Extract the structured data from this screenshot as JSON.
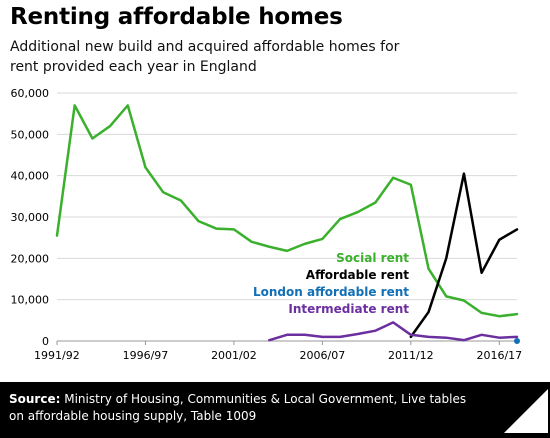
{
  "header": {
    "title": "Renting affordable homes",
    "subtitle": "Additional new build and acquired affordable homes for rent provided each year in England"
  },
  "footer": {
    "source_label": "Source:",
    "source_text": "Ministry of Housing, Communities & Local Government, Live tables on affordable housing supply, Table 1009",
    "logo_text": "Full Fact"
  },
  "chart_data": {
    "type": "line",
    "title": "Renting affordable homes",
    "subtitle": "Additional new build and acquired affordable homes for rent provided each year in England",
    "x": [
      "1991/92",
      "1992/93",
      "1993/94",
      "1994/95",
      "1995/96",
      "1996/97",
      "1997/98",
      "1998/99",
      "1999/00",
      "2000/01",
      "2001/02",
      "2002/03",
      "2003/04",
      "2004/05",
      "2005/06",
      "2006/07",
      "2007/08",
      "2008/09",
      "2009/10",
      "2010/11",
      "2011/12",
      "2012/13",
      "2013/14",
      "2014/15",
      "2015/16",
      "2016/17",
      "2017/18"
    ],
    "x_tick_labels": [
      "1991/92",
      "1996/97",
      "2001/02",
      "2006/07",
      "2011/12",
      "2016/17"
    ],
    "ylim": [
      0,
      60000
    ],
    "y_ticks": [
      0,
      10000,
      20000,
      30000,
      40000,
      50000,
      60000
    ],
    "y_tick_labels": [
      "0",
      "10,000",
      "20,000",
      "30,000",
      "40,000",
      "50,000",
      "60,000"
    ],
    "grid": "horizontal",
    "legend": "inline-right",
    "series": [
      {
        "name": "Social rent",
        "color": "#3ab02c",
        "values": [
          25500,
          57000,
          49000,
          52000,
          57000,
          42000,
          36000,
          34000,
          29000,
          27200,
          27000,
          24000,
          22800,
          21800,
          23500,
          24700,
          29500,
          31200,
          33500,
          39500,
          37800,
          17500,
          10800,
          9800,
          6800,
          6000,
          6500
        ]
      },
      {
        "name": "Affordable rent",
        "color": "#000000",
        "values": [
          null,
          null,
          null,
          null,
          null,
          null,
          null,
          null,
          null,
          null,
          null,
          null,
          null,
          null,
          null,
          null,
          null,
          null,
          null,
          null,
          1000,
          7000,
          20000,
          40500,
          16500,
          24500,
          27000
        ]
      },
      {
        "name": "London affordable rent",
        "color": "#1270b6",
        "values": [
          null,
          null,
          null,
          null,
          null,
          null,
          null,
          null,
          null,
          null,
          null,
          null,
          null,
          null,
          null,
          null,
          null,
          null,
          null,
          null,
          null,
          null,
          null,
          null,
          null,
          null,
          0
        ]
      },
      {
        "name": "Intermediate rent",
        "color": "#6b2fa0",
        "values": [
          null,
          null,
          null,
          null,
          null,
          null,
          null,
          null,
          null,
          null,
          null,
          null,
          200,
          1500,
          1500,
          1000,
          1000,
          1700,
          2500,
          4500,
          1500,
          1000,
          800,
          200,
          1500,
          800,
          1000
        ]
      }
    ]
  }
}
